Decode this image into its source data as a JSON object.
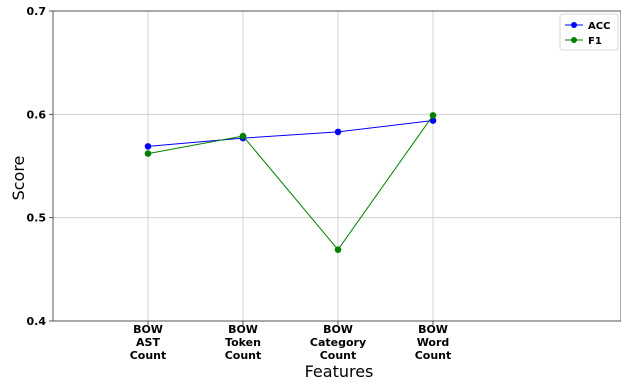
{
  "chart_data": {
    "type": "line",
    "xlabel": "Features",
    "ylabel": "Score",
    "categories": [
      [
        "BOW",
        "AST",
        "Count"
      ],
      [
        "BOW",
        "Token",
        "Count"
      ],
      [
        "BOW",
        "Category",
        "Count"
      ],
      [
        "BOW",
        "Word",
        "Count"
      ]
    ],
    "ylim": [
      0.4,
      0.7
    ],
    "yticks": [
      0.4,
      0.5,
      0.6,
      0.7
    ],
    "ytick_labels": [
      "0.4",
      "0.5",
      "0.6",
      "0.7"
    ],
    "grid": true,
    "legend_position": "top-right",
    "series": [
      {
        "name": "ACC",
        "color": "#0000ff",
        "values": [
          0.569,
          0.577,
          0.583,
          0.594
        ]
      },
      {
        "name": "F1",
        "color": "#008000",
        "values": [
          0.562,
          0.579,
          0.469,
          0.599
        ]
      }
    ]
  }
}
